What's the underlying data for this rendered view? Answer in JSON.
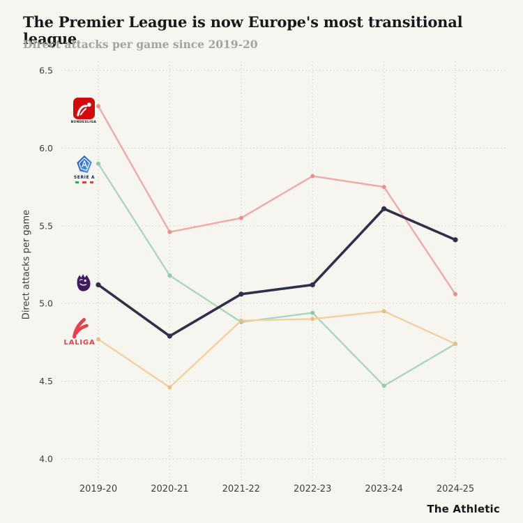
{
  "header": {
    "title": "The Premier League is now Europe's most transitional league",
    "subtitle": "Direct attacks per game since 2019-20"
  },
  "footer": {
    "attribution": "The Athletic"
  },
  "colors": {
    "background": "#f6f5ef",
    "grid": "#d8d5ca",
    "axis_text": "#3e3e3a",
    "title_text": "#191919",
    "subtitle_text": "#a5a49b",
    "bundesliga_red": "#d20a10",
    "seriea_blue": "#2f7de0",
    "premier_purple": "#3f1b63",
    "laliga_coral": "#e4404e"
  },
  "chart_data": {
    "type": "line",
    "title": "The Premier League is now Europe's most transitional league",
    "subtitle": "Direct attacks per game since 2019-20",
    "xlabel": "",
    "ylabel": "Direct attacks per game",
    "categories": [
      "2019-20",
      "2020-21",
      "2021-22",
      "2022-23",
      "2023-24",
      "2024-25"
    ],
    "y_ticks": [
      6.5,
      6.0,
      5.5,
      5.0,
      4.5,
      4.0
    ],
    "ylim": [
      4.0,
      6.5
    ],
    "grid": "dotted-both-axes",
    "legend_position": "inline-logos-left-of-first-point",
    "series": [
      {
        "name": "Bundesliga",
        "color": "#efaaa5",
        "marker_color": "#e5928e",
        "line_width": 2.4,
        "values": [
          6.27,
          5.46,
          5.55,
          5.82,
          5.75,
          5.06
        ]
      },
      {
        "name": "Serie A",
        "color": "#abd6bd",
        "marker_color": "#90c8ab",
        "line_width": 2.4,
        "values": [
          5.9,
          5.18,
          4.88,
          4.94,
          4.47,
          4.74
        ]
      },
      {
        "name": "LaLiga",
        "color": "#f2d1a0",
        "marker_color": "#e6c084",
        "line_width": 2.4,
        "values": [
          4.77,
          4.46,
          4.89,
          4.9,
          4.95,
          4.74
        ]
      },
      {
        "name": "Premier League",
        "color": "#312f49",
        "marker_color": "#312f49",
        "line_width": 3.6,
        "values": [
          5.12,
          4.79,
          5.06,
          5.12,
          5.61,
          5.41
        ]
      }
    ],
    "logos": [
      {
        "name": "bundesliga-logo",
        "label": "BUNDESLIGA"
      },
      {
        "name": "serie-a-logo",
        "label": "SERIE A"
      },
      {
        "name": "premier-league-logo",
        "label": ""
      },
      {
        "name": "laliga-logo",
        "label": "LALIGA"
      }
    ]
  }
}
